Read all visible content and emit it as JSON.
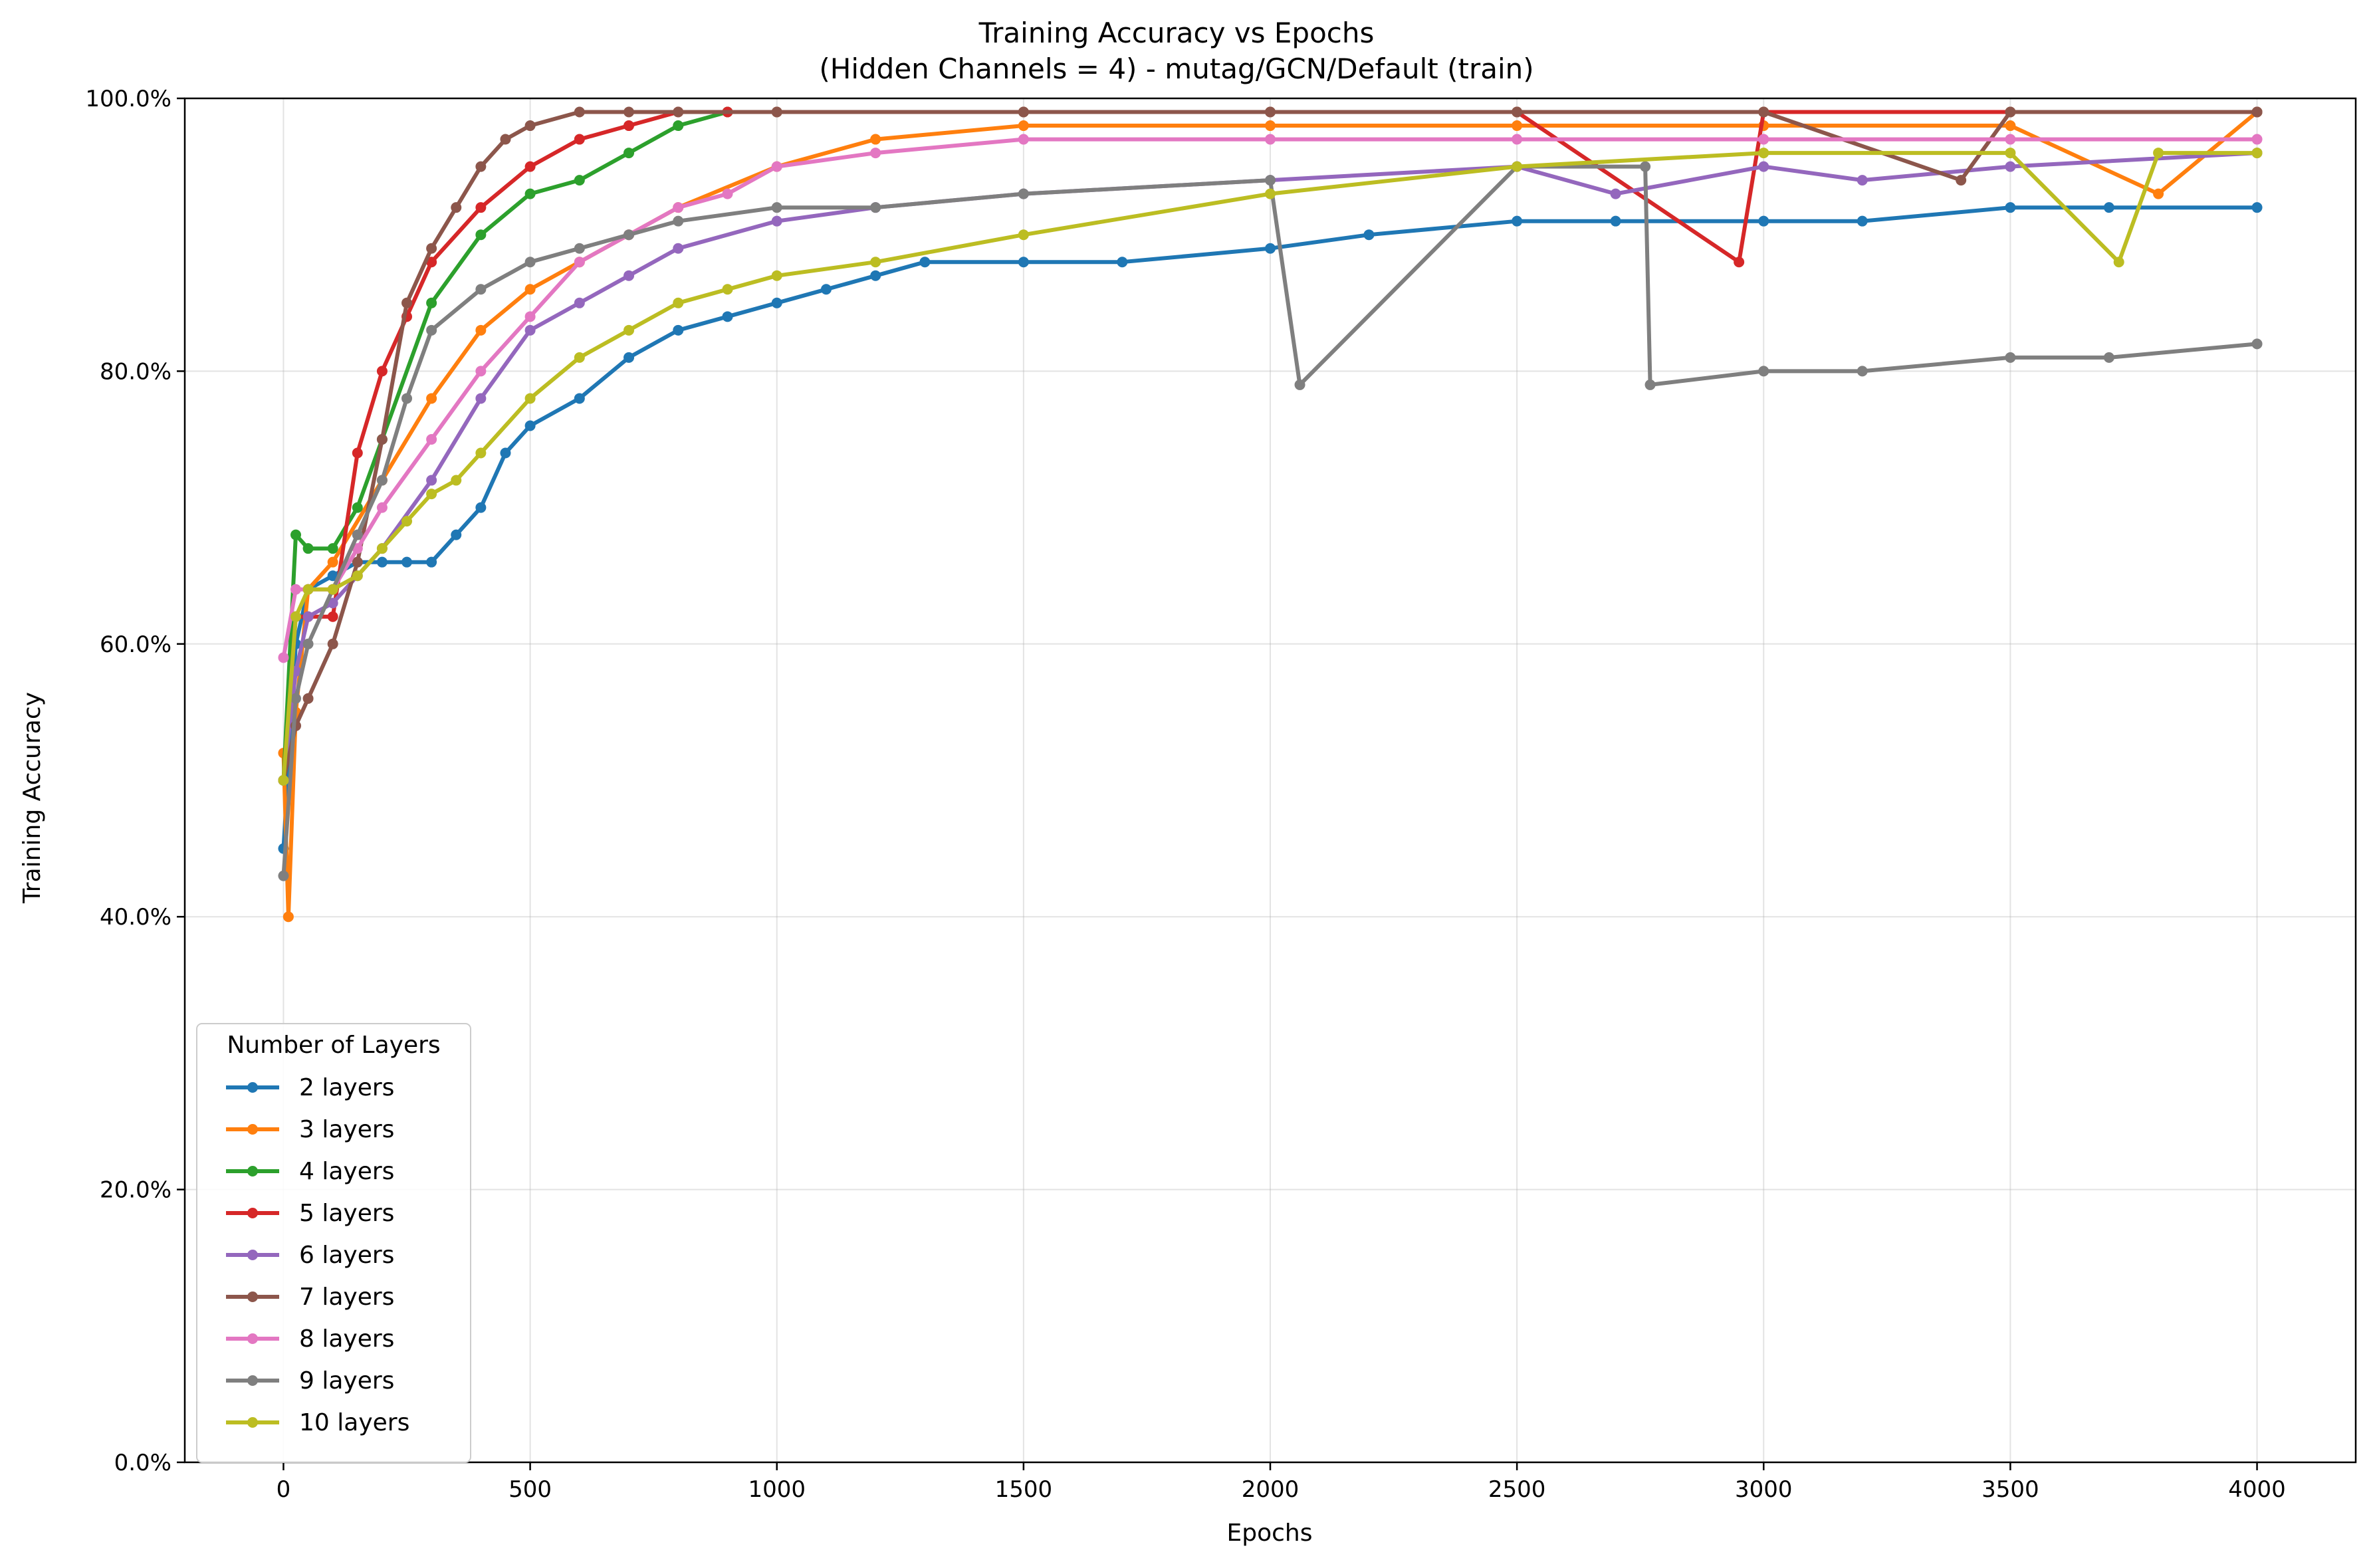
{
  "chart_data": {
    "type": "line",
    "title": "Training Accuracy vs Epochs",
    "subtitle": "(Hidden Channels = 4) - mutag/GCN/Default (train)",
    "xlabel": "Epochs",
    "ylabel": "Training Accuracy",
    "xlim": [
      -200,
      4200
    ],
    "ylim": [
      0,
      100
    ],
    "x_ticks": [
      0,
      500,
      1000,
      1500,
      2000,
      2500,
      3000,
      3500,
      4000
    ],
    "x_tick_labels": [
      "0",
      "500",
      "1000",
      "1500",
      "2000",
      "2500",
      "3000",
      "3500",
      "4000"
    ],
    "y_ticks": [
      0,
      20,
      40,
      60,
      80,
      100
    ],
    "y_tick_labels": [
      "0.0%",
      "20.0%",
      "40.0%",
      "60.0%",
      "80.0%",
      "100.0%"
    ],
    "grid": true,
    "legend": {
      "title": "Number of Layers",
      "position": "lower-left"
    },
    "series": [
      {
        "name": "2 layers",
        "color": "#1f77b4",
        "x": [
          0,
          25,
          50,
          100,
          150,
          200,
          250,
          300,
          350,
          400,
          450,
          500,
          600,
          700,
          800,
          900,
          1000,
          1100,
          1200,
          1300,
          1500,
          1700,
          2000,
          2200,
          2500,
          2700,
          3000,
          3200,
          3500,
          3700,
          4000
        ],
        "y": [
          45,
          60,
          64,
          65,
          66,
          66,
          66,
          66,
          68,
          70,
          74,
          76,
          78,
          81,
          83,
          84,
          85,
          86,
          87,
          88,
          88,
          88,
          89,
          90,
          91,
          91,
          91,
          91,
          92,
          92,
          92
        ]
      },
      {
        "name": "3 layers",
        "color": "#ff7f0e",
        "x": [
          0,
          10,
          25,
          50,
          100,
          200,
          300,
          400,
          500,
          600,
          700,
          800,
          1000,
          1200,
          1500,
          2000,
          2500,
          3000,
          3500,
          3800,
          4000
        ],
        "y": [
          52,
          40,
          55,
          64,
          66,
          72,
          78,
          83,
          86,
          88,
          90,
          92,
          95,
          97,
          98,
          98,
          98,
          98,
          98,
          93,
          99
        ]
      },
      {
        "name": "4 layers",
        "color": "#2ca02c",
        "x": [
          0,
          25,
          50,
          100,
          150,
          200,
          300,
          400,
          500,
          600,
          700,
          800,
          900,
          1000,
          1500,
          2000,
          2500,
          3000,
          3500,
          4000
        ],
        "y": [
          50,
          68,
          67,
          67,
          70,
          75,
          85,
          90,
          93,
          94,
          96,
          98,
          99,
          99,
          99,
          99,
          99,
          99,
          99,
          99
        ]
      },
      {
        "name": "5 layers",
        "color": "#d62728",
        "x": [
          0,
          25,
          50,
          100,
          150,
          200,
          250,
          300,
          400,
          500,
          600,
          700,
          800,
          900,
          1000,
          1500,
          2000,
          2500,
          2950,
          3000,
          3500,
          4000
        ],
        "y": [
          50,
          62,
          62,
          62,
          74,
          80,
          84,
          88,
          92,
          95,
          97,
          98,
          99,
          99,
          99,
          99,
          99,
          99,
          88,
          99,
          99,
          99
        ]
      },
      {
        "name": "6 layers",
        "color": "#9467bd",
        "x": [
          0,
          25,
          50,
          100,
          150,
          200,
          300,
          400,
          500,
          600,
          700,
          800,
          1000,
          1200,
          1500,
          2000,
          2500,
          2700,
          3000,
          3200,
          3500,
          4000
        ],
        "y": [
          50,
          58,
          62,
          63,
          65,
          67,
          72,
          78,
          83,
          85,
          87,
          89,
          91,
          92,
          93,
          94,
          95,
          93,
          95,
          94,
          95,
          96
        ]
      },
      {
        "name": "7 layers",
        "color": "#8c564b",
        "x": [
          0,
          25,
          50,
          100,
          150,
          200,
          250,
          300,
          350,
          400,
          450,
          500,
          600,
          700,
          800,
          1000,
          1500,
          2000,
          2500,
          3000,
          3400,
          3500,
          4000
        ],
        "y": [
          50,
          54,
          56,
          60,
          66,
          75,
          85,
          89,
          92,
          95,
          97,
          98,
          99,
          99,
          99,
          99,
          99,
          99,
          99,
          99,
          94,
          99,
          99
        ]
      },
      {
        "name": "8 layers",
        "color": "#e377c2",
        "x": [
          0,
          25,
          50,
          100,
          150,
          200,
          300,
          400,
          500,
          600,
          700,
          800,
          900,
          1000,
          1200,
          1500,
          2000,
          2500,
          3000,
          3500,
          4000
        ],
        "y": [
          59,
          64,
          64,
          64,
          67,
          70,
          75,
          80,
          84,
          88,
          90,
          92,
          93,
          95,
          96,
          97,
          97,
          97,
          97,
          97,
          97
        ]
      },
      {
        "name": "9 layers",
        "color": "#7f7f7f",
        "x": [
          0,
          25,
          50,
          100,
          150,
          200,
          250,
          300,
          400,
          500,
          600,
          700,
          800,
          1000,
          1200,
          1500,
          2000,
          2060,
          2500,
          2760,
          2770,
          3000,
          3200,
          3500,
          3700,
          4000
        ],
        "y": [
          43,
          56,
          60,
          64,
          68,
          72,
          78,
          83,
          86,
          88,
          89,
          90,
          91,
          92,
          92,
          93,
          94,
          79,
          95,
          95,
          79,
          80,
          80,
          81,
          81,
          82
        ]
      },
      {
        "name": "10 layers",
        "color": "#bcbd22",
        "x": [
          0,
          25,
          50,
          100,
          150,
          200,
          250,
          300,
          350,
          400,
          500,
          600,
          700,
          800,
          900,
          1000,
          1200,
          1500,
          2000,
          2500,
          3000,
          3500,
          3720,
          3800,
          4000
        ],
        "y": [
          50,
          62,
          64,
          64,
          65,
          67,
          69,
          71,
          72,
          74,
          78,
          81,
          83,
          85,
          86,
          87,
          88,
          90,
          93,
          95,
          96,
          96,
          88,
          96,
          96
        ]
      }
    ]
  }
}
